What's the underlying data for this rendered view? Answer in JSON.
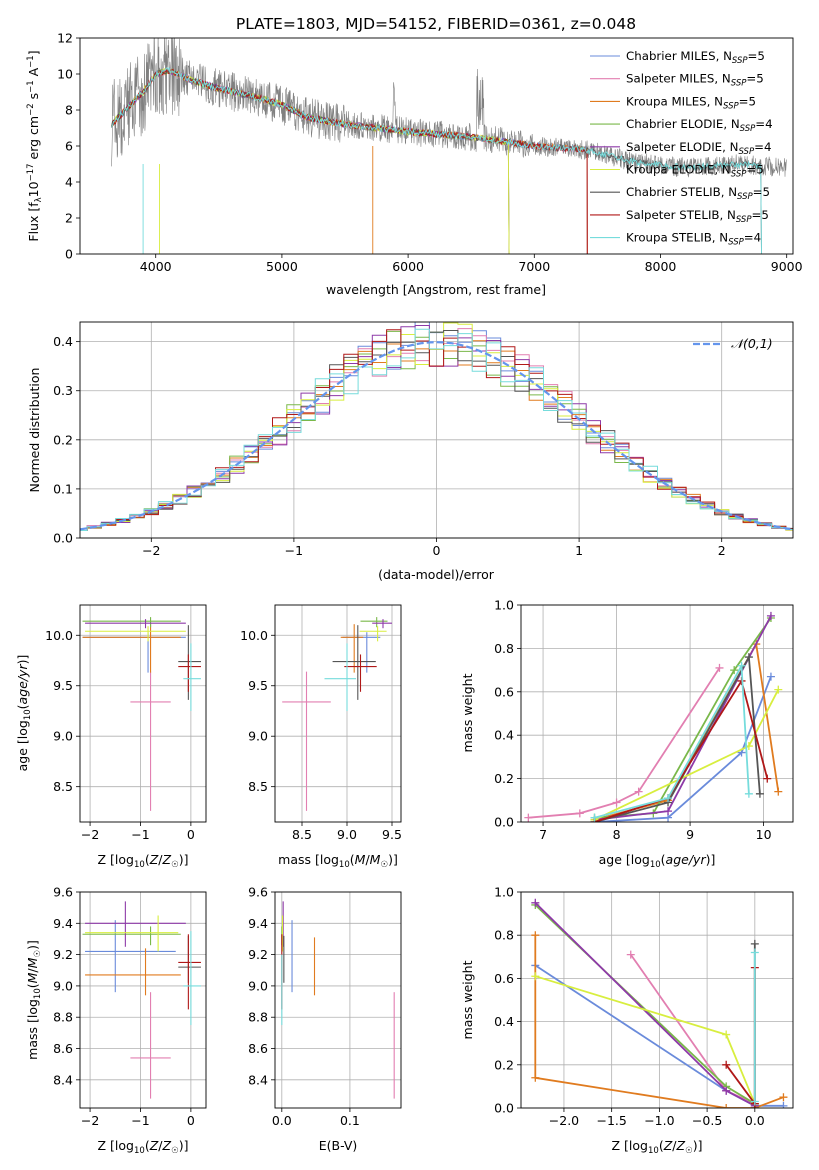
{
  "figure_title": "PLATE=1803, MJD=54152, FIBERID=0361, z=0.048",
  "colors": {
    "Chabrier MILES": "#6a8bdb",
    "Salpeter MILES": "#e27fb1",
    "Kroupa MILES": "#e07b1f",
    "Chabrier ELODIE": "#7ab84a",
    "Salpeter ELODIE": "#8e3aa8",
    "Kroupa ELODIE": "#d8ee3f",
    "Chabrier STELIB": "#555555",
    "Salpeter STELIB": "#b01818",
    "Kroupa STELIB": "#76dcdc",
    "data": "#808080",
    "normal": "#6495ed"
  },
  "chart_data": [
    {
      "id": "spectrum",
      "type": "line",
      "xlabel": "wavelength [Angstrom, rest frame]",
      "ylabel": "Flux [f_λ10^-17 erg cm^-2 s^-1 A^-1]",
      "xlim": [
        3400,
        9050
      ],
      "ylim": [
        0,
        12
      ],
      "xticks": [
        4000,
        5000,
        6000,
        7000,
        8000,
        9000
      ],
      "yticks": [
        0,
        2,
        4,
        6,
        8,
        10,
        12
      ],
      "legend_position": "top-right",
      "legend": [
        {
          "model": "Chabrier MILES",
          "nssp": 5
        },
        {
          "model": "Salpeter MILES",
          "nssp": 5
        },
        {
          "model": "Kroupa MILES",
          "nssp": 5
        },
        {
          "model": "Chabrier ELODIE",
          "nssp": 4
        },
        {
          "model": "Salpeter ELODIE",
          "nssp": 4
        },
        {
          "model": "Kroupa ELODIE",
          "nssp": 5
        },
        {
          "model": "Chabrier STELIB",
          "nssp": 5
        },
        {
          "model": "Salpeter STELIB",
          "nssp": 5
        },
        {
          "model": "Kroupa STELIB",
          "nssp": 4
        }
      ],
      "continuum": [
        [
          3650,
          7.2
        ],
        [
          3800,
          8.3
        ],
        [
          3900,
          9.0
        ],
        [
          4000,
          10.0
        ],
        [
          4100,
          10.2
        ],
        [
          4300,
          9.6
        ],
        [
          4500,
          9.2
        ],
        [
          4800,
          8.7
        ],
        [
          5000,
          8.3
        ],
        [
          5200,
          7.6
        ],
        [
          5500,
          7.2
        ],
        [
          6000,
          6.8
        ],
        [
          6500,
          6.5
        ],
        [
          7000,
          6.0
        ],
        [
          7400,
          5.8
        ],
        [
          7800,
          5.1
        ],
        [
          8200,
          4.8
        ],
        [
          8600,
          5.0
        ],
        [
          9000,
          4.8
        ]
      ],
      "data_range": [
        3650,
        9000
      ],
      "model_ranges": [
        [
          3650,
          7420
        ],
        [
          3650,
          7420
        ],
        [
          3650,
          7420
        ],
        [
          3650,
          6800
        ],
        [
          3650,
          6800
        ],
        [
          3650,
          6800
        ],
        [
          3650,
          8800
        ],
        [
          3650,
          7420
        ],
        [
          3650,
          8800
        ]
      ]
    },
    {
      "id": "residuals",
      "type": "histogram",
      "xlabel": "(data-model)/error",
      "ylabel": "Normed distribution",
      "xlim": [
        -2.5,
        2.5
      ],
      "ylim": [
        0,
        0.44
      ],
      "xticks": [
        -2,
        -1,
        0,
        1,
        2
      ],
      "yticks": [
        0.0,
        0.1,
        0.2,
        0.3,
        0.4
      ],
      "legend_position": "top-right",
      "legend_label": "𝒩(0,1)"
    },
    {
      "id": "z-age",
      "type": "errorbar",
      "xlabel": "Z [log10(Z/Z☉)]",
      "ylabel": "age [log10(age/yr)]",
      "xlim": [
        -2.2,
        0.3
      ],
      "ylim": [
        8.15,
        10.3
      ],
      "xticks": [
        -2,
        -1,
        0
      ],
      "yticks": [
        8.5,
        9.0,
        9.5,
        10.0
      ],
      "points": [
        {
          "x": -0.85,
          "y": 9.98,
          "xerr": [
            1.3,
            0.75
          ],
          "yerr": [
            0.35,
            0.05
          ]
        },
        {
          "x": -0.8,
          "y": 9.34,
          "xerr": [
            0.4,
            0.4
          ],
          "yerr": [
            1.08,
            0.3
          ]
        },
        {
          "x": -0.8,
          "y": 9.98,
          "xerr": [
            1.35,
            0.6
          ],
          "yerr": [
            0.35,
            0.13
          ]
        },
        {
          "x": -0.8,
          "y": 10.14,
          "xerr": [
            1.35,
            0.6
          ],
          "yerr": [
            0.06,
            0.04
          ]
        },
        {
          "x": -0.9,
          "y": 10.12,
          "xerr": [
            1.2,
            0.8
          ],
          "yerr": [
            0.05,
            0.04
          ]
        },
        {
          "x": -0.85,
          "y": 10.04,
          "xerr": [
            1.25,
            0.75
          ],
          "yerr": [
            0.1,
            0.05
          ]
        },
        {
          "x": -0.05,
          "y": 9.74,
          "xerr": [
            0.2,
            0.25
          ],
          "yerr": [
            0.38,
            0.36
          ]
        },
        {
          "x": -0.05,
          "y": 9.69,
          "xerr": [
            0.2,
            0.25
          ],
          "yerr": [
            0.25,
            0.12
          ]
        },
        {
          "x": 0.0,
          "y": 9.57,
          "xerr": [
            0.15,
            0.2
          ],
          "yerr": [
            0.32,
            0.35
          ]
        }
      ]
    },
    {
      "id": "mass-age",
      "type": "errorbar",
      "xlabel": "mass [log10(M/M☉)]",
      "ylabel": "",
      "xlim": [
        8.2,
        9.6
      ],
      "ylim": [
        8.15,
        10.3
      ],
      "xticks": [
        8.5,
        9.0,
        9.5
      ],
      "yticks": [
        8.5,
        9.0,
        9.5,
        10.0
      ],
      "points": [
        {
          "x": 9.22,
          "y": 9.98,
          "xerr": [
            0.27,
            0.15
          ],
          "yerr": [
            0.35,
            0.05
          ]
        },
        {
          "x": 8.55,
          "y": 9.34,
          "xerr": [
            0.27,
            0.27
          ],
          "yerr": [
            1.08,
            0.3
          ]
        },
        {
          "x": 9.08,
          "y": 9.98,
          "xerr": [
            0.15,
            0.1
          ],
          "yerr": [
            0.35,
            0.13
          ]
        },
        {
          "x": 9.33,
          "y": 10.14,
          "xerr": [
            0.18,
            0.12
          ],
          "yerr": [
            0.06,
            0.04
          ]
        },
        {
          "x": 9.4,
          "y": 10.12,
          "xerr": [
            0.12,
            0.1
          ],
          "yerr": [
            0.05,
            0.04
          ]
        },
        {
          "x": 9.34,
          "y": 10.04,
          "xerr": [
            0.2,
            0.1
          ],
          "yerr": [
            0.1,
            0.05
          ]
        },
        {
          "x": 9.12,
          "y": 9.74,
          "xerr": [
            0.28,
            0.2
          ],
          "yerr": [
            0.38,
            0.36
          ]
        },
        {
          "x": 9.15,
          "y": 9.69,
          "xerr": [
            0.18,
            0.18
          ],
          "yerr": [
            0.25,
            0.12
          ]
        },
        {
          "x": 9.0,
          "y": 9.57,
          "xerr": [
            0.25,
            0.1
          ],
          "yerr": [
            0.32,
            0.35
          ]
        }
      ]
    },
    {
      "id": "age-weight",
      "type": "line",
      "xlabel": "age [log10(age/yr)]",
      "ylabel": "mass weight",
      "xlim": [
        6.7,
        10.4
      ],
      "ylim": [
        0,
        1.0
      ],
      "xticks": [
        7,
        8,
        9,
        10
      ],
      "yticks": [
        0.0,
        0.2,
        0.4,
        0.6,
        0.8,
        1.0
      ],
      "series": [
        {
          "points": [
            [
              7.7,
              0.0
            ],
            [
              8.7,
              0.02
            ],
            [
              9.7,
              0.32
            ],
            [
              10.1,
              0.67
            ]
          ]
        },
        {
          "points": [
            [
              6.8,
              0.02
            ],
            [
              7.5,
              0.04
            ],
            [
              8.0,
              0.09
            ],
            [
              8.3,
              0.14
            ],
            [
              9.4,
              0.71
            ]
          ]
        },
        {
          "points": [
            [
              7.7,
              0.01
            ],
            [
              8.7,
              0.1
            ],
            [
              9.9,
              0.82
            ],
            [
              10.2,
              0.14
            ]
          ]
        },
        {
          "points": [
            [
              7.7,
              0.02
            ],
            [
              8.5,
              0.04
            ],
            [
              9.6,
              0.7
            ],
            [
              10.1,
              0.94
            ]
          ]
        },
        {
          "points": [
            [
              7.7,
              0.01
            ],
            [
              8.7,
              0.05
            ],
            [
              10.1,
              0.95
            ]
          ]
        },
        {
          "points": [
            [
              7.7,
              0.01
            ],
            [
              9.8,
              0.35
            ],
            [
              10.2,
              0.61
            ]
          ]
        },
        {
          "points": [
            [
              7.7,
              0.0
            ],
            [
              8.7,
              0.09
            ],
            [
              9.8,
              0.76
            ],
            [
              9.95,
              0.13
            ]
          ]
        },
        {
          "points": [
            [
              7.7,
              0.0
            ],
            [
              8.7,
              0.11
            ],
            [
              9.7,
              0.65
            ],
            [
              10.05,
              0.2
            ]
          ]
        },
        {
          "points": [
            [
              7.7,
              0.02
            ],
            [
              8.7,
              0.11
            ],
            [
              9.7,
              0.72
            ],
            [
              9.8,
              0.13
            ]
          ]
        }
      ]
    },
    {
      "id": "z-mass",
      "type": "errorbar",
      "xlabel": "Z [log10(Z/Z☉)]",
      "ylabel": "mass [log10(M/M☉)]",
      "xlim": [
        -2.2,
        0.3
      ],
      "ylim": [
        8.22,
        9.6
      ],
      "xticks": [
        -2,
        -1,
        0
      ],
      "yticks": [
        8.4,
        8.6,
        8.8,
        9.0,
        9.2,
        9.4,
        9.6
      ],
      "points": [
        {
          "x": -1.5,
          "y": 9.22,
          "xerr": [
            0.6,
            1.2
          ],
          "yerr": [
            0.26,
            0.2
          ]
        },
        {
          "x": -0.8,
          "y": 8.54,
          "xerr": [
            0.4,
            0.4
          ],
          "yerr": [
            0.26,
            0.42
          ]
        },
        {
          "x": -0.9,
          "y": 9.07,
          "xerr": [
            1.2,
            0.7
          ],
          "yerr": [
            0.13,
            0.17
          ]
        },
        {
          "x": -0.8,
          "y": 9.33,
          "xerr": [
            1.35,
            0.6
          ],
          "yerr": [
            0.07,
            0.05
          ]
        },
        {
          "x": -1.3,
          "y": 9.4,
          "xerr": [
            0.8,
            1.2
          ],
          "yerr": [
            0.15,
            0.14
          ]
        },
        {
          "x": -0.65,
          "y": 9.34,
          "xerr": [
            1.45,
            0.4
          ],
          "yerr": [
            0.12,
            0.11
          ]
        },
        {
          "x": -0.05,
          "y": 9.12,
          "xerr": [
            0.2,
            0.25
          ],
          "yerr": [
            0.1,
            0.2
          ]
        },
        {
          "x": -0.05,
          "y": 9.15,
          "xerr": [
            0.2,
            0.25
          ],
          "yerr": [
            0.3,
            0.18
          ]
        },
        {
          "x": 0.0,
          "y": 9.0,
          "xerr": [
            0.15,
            0.2
          ],
          "yerr": [
            0.25,
            0.35
          ]
        }
      ]
    },
    {
      "id": "ebv-mass",
      "type": "errorbar",
      "xlabel": "E(B-V)",
      "ylabel": "",
      "xlim": [
        -0.01,
        0.175
      ],
      "ylim": [
        8.22,
        9.6
      ],
      "xticks": [
        0.0,
        0.1
      ],
      "yticks": [
        8.4,
        8.6,
        8.8,
        9.0,
        9.2,
        9.4,
        9.6
      ],
      "points": [
        {
          "x": 0.015,
          "y": 9.22,
          "xerr": [
            0,
            0
          ],
          "yerr": [
            0.26,
            0.2
          ]
        },
        {
          "x": 0.165,
          "y": 8.54,
          "xerr": [
            0,
            0
          ],
          "yerr": [
            0.26,
            0.42
          ]
        },
        {
          "x": 0.048,
          "y": 9.07,
          "xerr": [
            0,
            0
          ],
          "yerr": [
            0.13,
            0.24
          ]
        },
        {
          "x": 0.0,
          "y": 9.33,
          "xerr": [
            0,
            0
          ],
          "yerr": [
            0.07,
            0.05
          ]
        },
        {
          "x": 0.002,
          "y": 9.4,
          "xerr": [
            0,
            0
          ],
          "yerr": [
            0.15,
            0.14
          ]
        },
        {
          "x": 0.001,
          "y": 9.34,
          "xerr": [
            0,
            0
          ],
          "yerr": [
            0.12,
            0.11
          ]
        },
        {
          "x": 0.003,
          "y": 9.12,
          "xerr": [
            0,
            0
          ],
          "yerr": [
            0.1,
            0.2
          ]
        },
        {
          "x": 0.0,
          "y": 9.15,
          "xerr": [
            0,
            0
          ],
          "yerr": [
            0.3,
            0.18
          ]
        },
        {
          "x": 0.0,
          "y": 9.0,
          "xerr": [
            0,
            0
          ],
          "yerr": [
            0.25,
            0.2
          ]
        }
      ]
    },
    {
      "id": "z-weight",
      "type": "line",
      "xlabel": "Z [log10(Z/Z☉)]",
      "ylabel": "mass weight",
      "xlim": [
        -2.45,
        0.4
      ],
      "ylim": [
        0,
        1.0
      ],
      "xticks": [
        -2.0,
        -1.5,
        -1.0,
        -0.5,
        0.0
      ],
      "yticks": [
        0.0,
        0.2,
        0.4,
        0.6,
        0.8,
        1.0
      ],
      "series": [
        {
          "points": [
            [
              -2.3,
              0.66
            ],
            [
              -0.3,
              0.08
            ],
            [
              0.0,
              0.01
            ],
            [
              0.3,
              0.01
            ]
          ]
        },
        {
          "points": [
            [
              -1.3,
              0.71
            ],
            [
              -0.3,
              0.08
            ],
            [
              0.0,
              0.02
            ]
          ]
        },
        {
          "points": [
            [
              -2.3,
              0.8
            ],
            [
              -2.3,
              0.14
            ],
            [
              -0.3,
              0.0
            ],
            [
              0.0,
              0.0
            ],
            [
              0.3,
              0.05
            ]
          ]
        },
        {
          "points": [
            [
              -2.3,
              0.94
            ],
            [
              -0.3,
              0.1
            ],
            [
              0.0,
              0.02
            ]
          ]
        },
        {
          "points": [
            [
              -2.3,
              0.95
            ],
            [
              -0.3,
              0.08
            ],
            [
              0.0,
              0.01
            ]
          ]
        },
        {
          "points": [
            [
              -2.3,
              0.61
            ],
            [
              -0.3,
              0.34
            ],
            [
              0.0,
              0.02
            ]
          ]
        },
        {
          "points": [
            [
              0.0,
              0.76
            ],
            [
              0.0,
              0.0
            ]
          ]
        },
        {
          "points": [
            [
              -0.3,
              0.2
            ],
            [
              0.0,
              0.02
            ],
            [
              0.0,
              0.65
            ]
          ]
        },
        {
          "points": [
            [
              0.0,
              0.72
            ],
            [
              0.0,
              0.03
            ]
          ]
        }
      ]
    }
  ]
}
